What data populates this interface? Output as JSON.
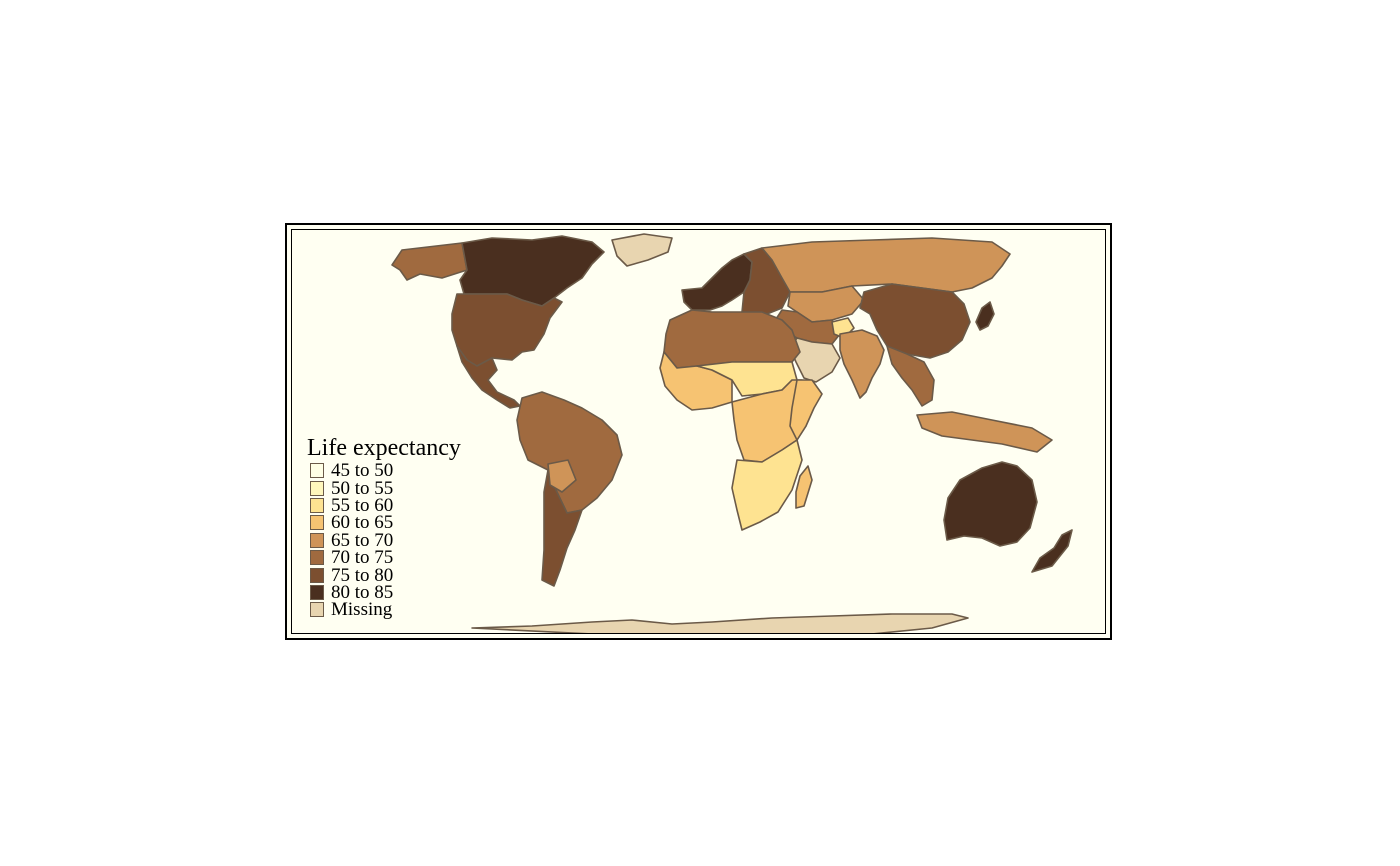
{
  "legend": {
    "title": "Life expectancy",
    "items": [
      {
        "label": "45 to 50",
        "color": "#ffffe5"
      },
      {
        "label": "50 to 55",
        "color": "#fff7bc"
      },
      {
        "label": "55 to 60",
        "color": "#fee391"
      },
      {
        "label": "60 to 65",
        "color": "#f6c372"
      },
      {
        "label": "65 to 70",
        "color": "#cf9458"
      },
      {
        "label": "70 to 75",
        "color": "#a06a3f"
      },
      {
        "label": "75 to 80",
        "color": "#7c4f30"
      },
      {
        "label": "80 to 85",
        "color": "#4a2f1f"
      },
      {
        "label": "Missing",
        "color": "#e8d5b0"
      }
    ]
  },
  "colors": {
    "sea": "#fffff2",
    "border": "#6b5a48",
    "frame": "#000000"
  },
  "regions": [
    {
      "name": "canada",
      "class": "80 to 85"
    },
    {
      "name": "alaska",
      "class": "70 to 75"
    },
    {
      "name": "usa",
      "class": "75 to 80"
    },
    {
      "name": "greenland",
      "class": "Missing"
    },
    {
      "name": "mexico-central-america",
      "class": "75 to 80"
    },
    {
      "name": "south-america",
      "class": "70 to 75"
    },
    {
      "name": "argentina-chile",
      "class": "75 to 80"
    },
    {
      "name": "bolivia",
      "class": "65 to 70"
    },
    {
      "name": "western-europe",
      "class": "80 to 85"
    },
    {
      "name": "eastern-europe",
      "class": "75 to 80"
    },
    {
      "name": "russia",
      "class": "65 to 70"
    },
    {
      "name": "central-asia",
      "class": "65 to 70"
    },
    {
      "name": "china",
      "class": "75 to 80"
    },
    {
      "name": "middle-east",
      "class": "70 to 75"
    },
    {
      "name": "arabia",
      "class": "Missing"
    },
    {
      "name": "afghanistan",
      "class": "55 to 60"
    },
    {
      "name": "india",
      "class": "65 to 70"
    },
    {
      "name": "southeast-asia",
      "class": "70 to 75"
    },
    {
      "name": "japan",
      "class": "80 to 85"
    },
    {
      "name": "indonesia",
      "class": "65 to 70"
    },
    {
      "name": "australia",
      "class": "80 to 85"
    },
    {
      "name": "new-zealand",
      "class": "80 to 85"
    },
    {
      "name": "north-africa",
      "class": "70 to 75"
    },
    {
      "name": "west-africa",
      "class": "60 to 65"
    },
    {
      "name": "sahel",
      "class": "55 to 60"
    },
    {
      "name": "central-africa",
      "class": "60 to 65"
    },
    {
      "name": "east-africa",
      "class": "60 to 65"
    },
    {
      "name": "southern-africa",
      "class": "55 to 60"
    },
    {
      "name": "madagascar",
      "class": "60 to 65"
    },
    {
      "name": "antarctica",
      "class": "Missing"
    }
  ]
}
